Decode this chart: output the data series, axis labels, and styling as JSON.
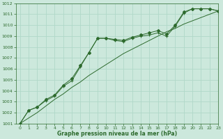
{
  "title": "Graphe pression niveau de la mer (hPa)",
  "xlabel_ticks": [
    0,
    1,
    2,
    3,
    4,
    5,
    6,
    7,
    8,
    9,
    10,
    11,
    12,
    13,
    14,
    15,
    16,
    17,
    18,
    19,
    20,
    21,
    22,
    23
  ],
  "ylim": [
    1001,
    1012
  ],
  "xlim": [
    -0.5,
    23
  ],
  "yticks": [
    1001,
    1002,
    1003,
    1004,
    1005,
    1006,
    1007,
    1008,
    1009,
    1010,
    1011,
    1012
  ],
  "bg_color": "#cce8dc",
  "grid_color": "#b0d8c8",
  "line_color": "#2d6a2d",
  "series_plus": [
    1001.0,
    1002.2,
    1002.5,
    1003.1,
    1003.5,
    1004.4,
    1004.9,
    1006.2,
    1007.5,
    1008.8,
    1008.8,
    1008.6,
    1008.5,
    1008.8,
    1009.0,
    1009.1,
    1009.3,
    1009.0,
    1009.9,
    1011.1,
    1011.5,
    1011.5,
    1011.5,
    1011.3
  ],
  "series_diamond": [
    1001.0,
    1002.2,
    1002.5,
    1003.2,
    1003.6,
    1004.5,
    1005.1,
    1006.3,
    1007.5,
    1008.8,
    1008.8,
    1008.7,
    1008.6,
    1008.9,
    1009.1,
    1009.3,
    1009.5,
    1009.2,
    1010.0,
    1011.2,
    1011.5,
    1011.5,
    1011.5,
    1011.3
  ],
  "series_smooth": [
    1001.0,
    1001.5,
    1002.0,
    1002.6,
    1003.2,
    1003.7,
    1004.3,
    1004.8,
    1005.4,
    1005.9,
    1006.4,
    1006.9,
    1007.4,
    1007.8,
    1008.2,
    1008.6,
    1009.0,
    1009.4,
    1009.7,
    1010.1,
    1010.4,
    1010.7,
    1011.0,
    1011.3
  ]
}
